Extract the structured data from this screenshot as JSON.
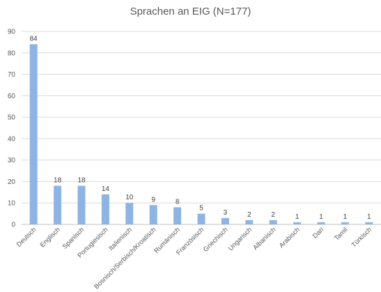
{
  "chart_data": {
    "type": "bar",
    "title": "Sprachen an EIG (N=177)",
    "xlabel": "",
    "ylabel": "",
    "ylim": [
      0,
      90
    ],
    "yticks": [
      0,
      10,
      20,
      30,
      40,
      50,
      60,
      70,
      80,
      90
    ],
    "grid": true,
    "legend": "none",
    "bar_color": "#8eb4e3",
    "grid_color": "#d9d9d9",
    "categories": [
      "Deutsch",
      "Englisch",
      "Spanisch",
      "Portugiesisch",
      "Italienisch",
      "Bosnisch/Serbisch/Kroatisch",
      "Rumänisch",
      "Französisch",
      "Griechisch",
      "Ungarisch",
      "Albanisch",
      "Arabisch",
      "Dari",
      "Tamil",
      "Türkisch"
    ],
    "values": [
      84,
      18,
      18,
      14,
      10,
      9,
      8,
      5,
      3,
      2,
      2,
      1,
      1,
      1,
      1
    ]
  }
}
